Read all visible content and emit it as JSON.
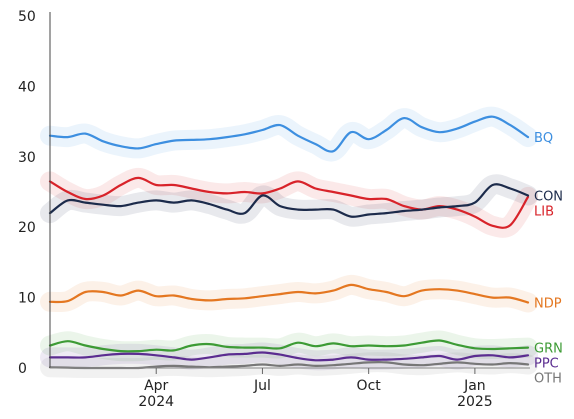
{
  "chart_data": {
    "type": "line",
    "title": "",
    "xlabel": "",
    "ylabel": "",
    "ylim": [
      0,
      50
    ],
    "y_ticks": [
      0,
      10,
      20,
      30,
      40,
      50
    ],
    "x_ticks": [
      {
        "month": 3,
        "label": "Apr",
        "sublabel": "2024"
      },
      {
        "month": 6,
        "label": "Jul",
        "sublabel": ""
      },
      {
        "month": 9,
        "label": "Oct",
        "sublabel": ""
      },
      {
        "month": 12,
        "label": "Jan",
        "sublabel": "2025"
      }
    ],
    "grid": false,
    "legend": "end-labels",
    "uncertainty_band": true,
    "x": [
      0,
      0.5,
      1,
      1.5,
      2,
      2.5,
      3,
      3.5,
      4,
      4.5,
      5,
      5.5,
      6,
      6.5,
      7,
      7.5,
      8,
      8.5,
      9,
      9.5,
      10,
      10.5,
      11,
      11.5,
      12,
      12.5,
      13,
      13.5
    ],
    "series": [
      {
        "name": "BQ",
        "color": "#3d8fe0",
        "values": [
          33,
          32.8,
          33.3,
          32.2,
          31.5,
          31.2,
          31.8,
          32.3,
          32.4,
          32.5,
          32.8,
          33.2,
          33.8,
          34.5,
          33,
          31.8,
          30.8,
          33.5,
          32.5,
          33.8,
          35.5,
          34.2,
          33.5,
          34,
          35,
          35.7,
          34.5,
          32.8
        ]
      },
      {
        "name": "LIB",
        "color": "#d8232a",
        "values": [
          26.5,
          25,
          24,
          24.5,
          26,
          27,
          26,
          26,
          25.5,
          25,
          24.8,
          25,
          24.8,
          25.5,
          26.5,
          25.5,
          25,
          24.5,
          24,
          24,
          23,
          22.5,
          23,
          22.5,
          21.5,
          20.2,
          20.3,
          24.3
        ]
      },
      {
        "name": "CON",
        "color": "#1c2b4b",
        "values": [
          22,
          23.8,
          23.5,
          23.2,
          23,
          23.5,
          23.8,
          23.5,
          23.8,
          23.3,
          22.5,
          22,
          24.5,
          23,
          22.5,
          22.5,
          22.5,
          21.5,
          21.8,
          22,
          22.3,
          22.5,
          22.8,
          23,
          23.5,
          26,
          25.5,
          24.5
        ]
      },
      {
        "name": "NDP",
        "color": "#e47721",
        "values": [
          9.4,
          9.5,
          10.8,
          10.8,
          10.3,
          11,
          10.2,
          10.3,
          9.8,
          9.6,
          9.8,
          9.9,
          10.2,
          10.5,
          10.8,
          10.6,
          11,
          11.8,
          11.2,
          10.8,
          10.2,
          11,
          11.2,
          11,
          10.5,
          10,
          10,
          9.3
        ]
      },
      {
        "name": "GRN",
        "color": "#3d9b35",
        "values": [
          3.2,
          3.8,
          3.2,
          2.7,
          2.4,
          2.4,
          2.6,
          2.5,
          3.2,
          3.4,
          3,
          2.9,
          2.9,
          2.8,
          3.6,
          3.1,
          3.5,
          3.1,
          3.2,
          3.1,
          3.2,
          3.6,
          3.9,
          3.3,
          2.8,
          2.7,
          2.8,
          2.9
        ]
      },
      {
        "name": "PPC",
        "color": "#5b2d90",
        "values": [
          1.5,
          1.5,
          1.5,
          1.8,
          2,
          2,
          1.8,
          1.5,
          1.2,
          1.5,
          1.9,
          2,
          2.2,
          1.9,
          1.4,
          1.1,
          1.2,
          1.5,
          1.2,
          1.2,
          1.3,
          1.5,
          1.7,
          1.2,
          1.7,
          1.8,
          1.5,
          1.8
        ]
      },
      {
        "name": "OTH",
        "color": "#777777",
        "values": [
          0.1,
          0.05,
          0,
          0,
          0,
          0,
          0.2,
          0.3,
          0.2,
          0.1,
          0.2,
          0.3,
          0.5,
          0.3,
          0.5,
          0.3,
          0.4,
          0.6,
          0.8,
          0.8,
          0.5,
          0.4,
          0.6,
          0.8,
          0.6,
          0.5,
          0.7,
          0.5
        ]
      }
    ]
  }
}
